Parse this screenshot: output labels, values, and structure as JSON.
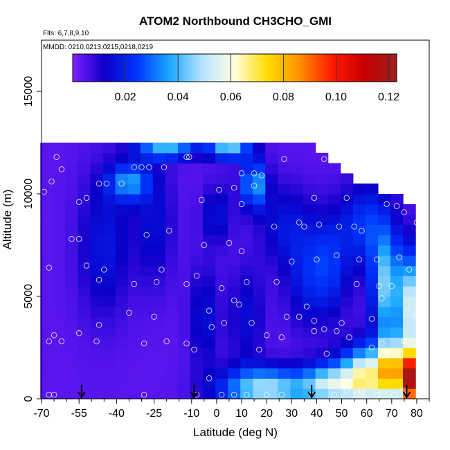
{
  "chart_data": {
    "type": "heatmap",
    "title": "ATOM2 Northbound CH3CHO_GMI",
    "annotations": {
      "flights": "Flts: 6,7,8,9,10",
      "dates": "MMDD: 0210,0213,0215,0218,0219"
    },
    "xlabel": "Latitude (deg N)",
    "ylabel": "Altitude (m)",
    "xlim": [
      -70,
      85
    ],
    "ylim": [
      0,
      17500
    ],
    "x_ticks": [
      -70,
      -55,
      -40,
      -25,
      -10,
      0,
      10,
      20,
      30,
      40,
      50,
      60,
      70,
      80
    ],
    "x_ticklabels": [
      "-70",
      "-55",
      "-40",
      "-25",
      "-10",
      "0",
      "10",
      "20",
      "30",
      "40",
      "50",
      "60",
      "70",
      "80"
    ],
    "y_ticks": [
      0,
      5000,
      10000,
      15000
    ],
    "y_ticklabels": [
      "0",
      "5000",
      "10000",
      "15000"
    ],
    "colorbar": {
      "range": [
        0,
        0.123
      ],
      "ticks": [
        0.02,
        0.04,
        0.06,
        0.08,
        0.1,
        0.12
      ],
      "ticklabels": [
        "0.02",
        "0.04",
        "0.06",
        "0.08",
        "0.10",
        "0.12"
      ],
      "colors": [
        "#7f1fff",
        "#0a00c8",
        "#0036ff",
        "#1aa8ff",
        "#b8e4ff",
        "#ffffe0",
        "#ffdc00",
        "#ff9000",
        "#ff1a00",
        "#c80000",
        "#9c2020"
      ]
    },
    "latitude_grid": [
      -68,
      -63,
      -58,
      -53,
      -48,
      -43,
      -38,
      -33,
      -28,
      -23,
      -18,
      -13,
      -8,
      -3,
      2,
      7,
      12,
      17,
      22,
      27,
      32,
      37,
      42,
      47,
      52,
      57,
      62,
      67,
      72,
      77
    ],
    "altitude_levels": [
      0,
      500,
      1000,
      1500,
      2000,
      2500,
      3000,
      3500,
      4000,
      4500,
      5000,
      5500,
      6000,
      6500,
      7000,
      7500,
      8000,
      8500,
      9000,
      9500,
      10000,
      10500,
      11000,
      11500,
      12000
    ],
    "coverage": [
      {
        "lat": -68,
        "alt_max": 12000
      },
      {
        "lat": -63,
        "alt_max": 12000
      },
      {
        "lat": -58,
        "alt_max": 12000
      },
      {
        "lat": -53,
        "alt_max": 12000
      },
      {
        "lat": -48,
        "alt_max": 12000
      },
      {
        "lat": -43,
        "alt_max": 12000
      },
      {
        "lat": -38,
        "alt_max": 12000
      },
      {
        "lat": -33,
        "alt_max": 12000
      },
      {
        "lat": -28,
        "alt_max": 12000
      },
      {
        "lat": -23,
        "alt_max": 12500
      },
      {
        "lat": -18,
        "alt_max": 12500
      },
      {
        "lat": -13,
        "alt_max": 12500
      },
      {
        "lat": -8,
        "alt_max": 12500
      },
      {
        "lat": -3,
        "alt_max": 12500
      },
      {
        "lat": 2,
        "alt_max": 12500
      },
      {
        "lat": 7,
        "alt_max": 12500
      },
      {
        "lat": 12,
        "alt_max": 12500
      },
      {
        "lat": 17,
        "alt_max": 12000
      },
      {
        "lat": 22,
        "alt_max": 12000
      },
      {
        "lat": 27,
        "alt_max": 12000
      },
      {
        "lat": 32,
        "alt_max": 12000
      },
      {
        "lat": 37,
        "alt_max": 12000
      },
      {
        "lat": 42,
        "alt_max": 11500
      },
      {
        "lat": 47,
        "alt_max": 11000
      },
      {
        "lat": 52,
        "alt_max": 10500
      },
      {
        "lat": 57,
        "alt_max": 10000
      },
      {
        "lat": 62,
        "alt_max": 10000
      },
      {
        "lat": 67,
        "alt_max": 9500
      },
      {
        "lat": 72,
        "alt_max": 9500
      },
      {
        "lat": 77,
        "alt_max": 9000
      }
    ],
    "blobs": [
      {
        "lat": -45,
        "alt": 7500,
        "lat_spread": 10,
        "alt_spread": 3500,
        "value": 0.013
      },
      {
        "lat": -25,
        "alt": 8500,
        "lat_spread": 8,
        "alt_spread": 3000,
        "value": 0.011
      },
      {
        "lat": -35,
        "alt": 10600,
        "lat_spread": 8,
        "alt_spread": 900,
        "value": 0.03
      },
      {
        "lat": -20,
        "alt": 12200,
        "lat_spread": 12,
        "alt_spread": 500,
        "value": 0.035
      },
      {
        "lat": 5,
        "alt": 12200,
        "lat_spread": 8,
        "alt_spread": 500,
        "value": 0.04
      },
      {
        "lat": 15,
        "alt": 10500,
        "lat_spread": 5,
        "alt_spread": 1200,
        "value": 0.034
      },
      {
        "lat": 0,
        "alt": 9000,
        "lat_spread": 6,
        "alt_spread": 1500,
        "value": 0.012
      },
      {
        "lat": -5,
        "alt": 4000,
        "lat_spread": 6,
        "alt_spread": 2500,
        "value": 0.012
      },
      {
        "lat": 12,
        "alt": 4000,
        "lat_spread": 7,
        "alt_spread": 2500,
        "value": 0.011
      },
      {
        "lat": 27,
        "alt": 8500,
        "lat_spread": 10,
        "alt_spread": 2000,
        "value": 0.012
      },
      {
        "lat": 35,
        "alt": 6000,
        "lat_spread": 8,
        "alt_spread": 2500,
        "value": 0.012
      },
      {
        "lat": 45,
        "alt": 6500,
        "lat_spread": 8,
        "alt_spread": 2500,
        "value": 0.018
      },
      {
        "lat": 60,
        "alt": 8500,
        "lat_spread": 10,
        "alt_spread": 2000,
        "value": 0.02
      },
      {
        "lat": 68,
        "alt": 5500,
        "lat_spread": 6,
        "alt_spread": 2500,
        "value": 0.04
      },
      {
        "lat": 77,
        "alt": 4500,
        "lat_spread": 4,
        "alt_spread": 2500,
        "value": 0.045
      },
      {
        "lat": 20,
        "alt": 500,
        "lat_spread": 18,
        "alt_spread": 1000,
        "value": 0.045
      },
      {
        "lat": 45,
        "alt": 700,
        "lat_spread": 10,
        "alt_spread": 1000,
        "value": 0.04
      },
      {
        "lat": 60,
        "alt": 1000,
        "lat_spread": 10,
        "alt_spread": 1500,
        "value": 0.06
      },
      {
        "lat": 70,
        "alt": 1500,
        "lat_spread": 5,
        "alt_spread": 1500,
        "value": 0.06
      },
      {
        "lat": 76,
        "alt": 800,
        "lat_spread": 3,
        "alt_spread": 1200,
        "value": 0.085
      },
      {
        "lat": 79,
        "alt": 1500,
        "lat_spread": 2,
        "alt_spread": 1500,
        "value": 0.08
      }
    ],
    "background_value": 0.004,
    "sample_points": [
      {
        "lat": -67,
        "alt": 200
      },
      {
        "lat": -65,
        "alt": 200
      },
      {
        "lat": -67,
        "alt": 2800
      },
      {
        "lat": -65,
        "alt": 3100
      },
      {
        "lat": -62,
        "alt": 2800
      },
      {
        "lat": -55,
        "alt": 3200
      },
      {
        "lat": -48,
        "alt": 2800
      },
      {
        "lat": -47,
        "alt": 3600
      },
      {
        "lat": -35,
        "alt": 4200
      },
      {
        "lat": -29,
        "alt": 2700
      },
      {
        "lat": -20,
        "alt": 2800
      },
      {
        "lat": -29,
        "alt": 200
      },
      {
        "lat": -12,
        "alt": 2700
      },
      {
        "lat": -9,
        "alt": 2400
      },
      {
        "lat": -8,
        "alt": 200
      },
      {
        "lat": -3,
        "alt": 1000
      },
      {
        "lat": 2,
        "alt": 200
      },
      {
        "lat": 7,
        "alt": 200
      },
      {
        "lat": 12,
        "alt": 200
      },
      {
        "lat": 20,
        "alt": 200
      },
      {
        "lat": 26,
        "alt": 200
      },
      {
        "lat": 38,
        "alt": 200
      },
      {
        "lat": 47,
        "alt": 200
      },
      {
        "lat": 52,
        "alt": 400
      },
      {
        "lat": 58,
        "alt": 400
      },
      {
        "lat": 64,
        "alt": 200
      },
      {
        "lat": 71,
        "alt": 200
      },
      {
        "lat": 75,
        "alt": 400
      },
      {
        "lat": -67,
        "alt": 6400
      },
      {
        "lat": -58,
        "alt": 7800
      },
      {
        "lat": -47,
        "alt": 5800
      },
      {
        "lat": -45,
        "alt": 6300
      },
      {
        "lat": -33,
        "alt": 5600
      },
      {
        "lat": -28,
        "alt": 8000
      },
      {
        "lat": -24,
        "alt": 5700
      },
      {
        "lat": -22,
        "alt": 6300
      },
      {
        "lat": -12,
        "alt": 5600
      },
      {
        "lat": -8,
        "alt": 6000
      },
      {
        "lat": -5,
        "alt": 7500
      },
      {
        "lat": -3,
        "alt": 4300
      },
      {
        "lat": -2,
        "alt": 3500
      },
      {
        "lat": 2,
        "alt": 5400
      },
      {
        "lat": 3,
        "alt": 3700
      },
      {
        "lat": 5,
        "alt": 7600
      },
      {
        "lat": 7,
        "alt": 4800
      },
      {
        "lat": 9,
        "alt": 4600
      },
      {
        "lat": 10,
        "alt": 7200
      },
      {
        "lat": 12,
        "alt": 5700
      },
      {
        "lat": 14,
        "alt": 3700
      },
      {
        "lat": 17,
        "alt": 2400
      },
      {
        "lat": 20,
        "alt": 3100
      },
      {
        "lat": 24,
        "alt": 5700
      },
      {
        "lat": 26,
        "alt": 3000
      },
      {
        "lat": 28,
        "alt": 4000
      },
      {
        "lat": 30,
        "alt": 6700
      },
      {
        "lat": 33,
        "alt": 4000
      },
      {
        "lat": 36,
        "alt": 4500
      },
      {
        "lat": 40,
        "alt": 6800
      },
      {
        "lat": 39,
        "alt": 3800
      },
      {
        "lat": 39,
        "alt": 3300
      },
      {
        "lat": 43,
        "alt": 3400
      },
      {
        "lat": 44,
        "alt": 2200
      },
      {
        "lat": 48,
        "alt": 3300
      },
      {
        "lat": 48,
        "alt": 7000
      },
      {
        "lat": 50,
        "alt": 3700
      },
      {
        "lat": 53,
        "alt": 3000
      },
      {
        "lat": 56,
        "alt": 5600
      },
      {
        "lat": 57,
        "alt": 6800
      },
      {
        "lat": 62,
        "alt": 3900
      },
      {
        "lat": 62,
        "alt": 2500
      },
      {
        "lat": 64,
        "alt": 6800
      },
      {
        "lat": 66,
        "alt": 4900
      },
      {
        "lat": 65,
        "alt": 5500
      },
      {
        "lat": 66,
        "alt": 2700
      },
      {
        "lat": 70,
        "alt": 5500
      },
      {
        "lat": 72,
        "alt": 2200
      },
      {
        "lat": 73,
        "alt": 6900
      },
      {
        "lat": 75,
        "alt": 2800
      },
      {
        "lat": 77,
        "alt": 6300
      },
      {
        "lat": 80,
        "alt": 4000
      },
      {
        "lat": -62,
        "alt": 11200
      },
      {
        "lat": -66,
        "alt": 10600
      },
      {
        "lat": -69,
        "alt": 10100
      },
      {
        "lat": -64,
        "alt": 11800
      },
      {
        "lat": -55,
        "alt": 9600
      },
      {
        "lat": -52,
        "alt": 9800
      },
      {
        "lat": -47,
        "alt": 10500
      },
      {
        "lat": -44,
        "alt": 10500
      },
      {
        "lat": -38,
        "alt": 10500
      },
      {
        "lat": -33,
        "alt": 11300
      },
      {
        "lat": -30,
        "alt": 11300
      },
      {
        "lat": -27,
        "alt": 11300
      },
      {
        "lat": -21,
        "alt": 11300
      },
      {
        "lat": -12,
        "alt": 11800
      },
      {
        "lat": -11,
        "alt": 11800
      },
      {
        "lat": -19,
        "alt": 8200
      },
      {
        "lat": -6,
        "alt": 9700
      },
      {
        "lat": 1,
        "alt": 10200
      },
      {
        "lat": 7,
        "alt": 10300
      },
      {
        "lat": 10,
        "alt": 9500
      },
      {
        "lat": 10,
        "alt": 11000
      },
      {
        "lat": 15,
        "alt": 11000
      },
      {
        "lat": 18,
        "alt": 10900
      },
      {
        "lat": 15,
        "alt": 10400
      },
      {
        "lat": 23,
        "alt": 8400
      },
      {
        "lat": 27,
        "alt": 11700
      },
      {
        "lat": 33,
        "alt": 8600
      },
      {
        "lat": 35,
        "alt": 8400
      },
      {
        "lat": 39,
        "alt": 9800
      },
      {
        "lat": 41,
        "alt": 8500
      },
      {
        "lat": 43,
        "alt": 11700
      },
      {
        "lat": 49,
        "alt": 8400
      },
      {
        "lat": 52,
        "alt": 9800
      },
      {
        "lat": 55,
        "alt": 8400
      },
      {
        "lat": 58,
        "alt": 8200
      },
      {
        "lat": 68,
        "alt": 9500
      },
      {
        "lat": 72,
        "alt": 9400
      },
      {
        "lat": 75,
        "alt": 9100
      },
      {
        "lat": 80,
        "alt": 8600
      },
      {
        "lat": -55,
        "alt": 7800
      },
      {
        "lat": -52,
        "alt": 6500
      },
      {
        "lat": -25,
        "alt": 4000
      }
    ],
    "marker_latitudes": [
      -54,
      -9,
      38,
      76
    ]
  }
}
